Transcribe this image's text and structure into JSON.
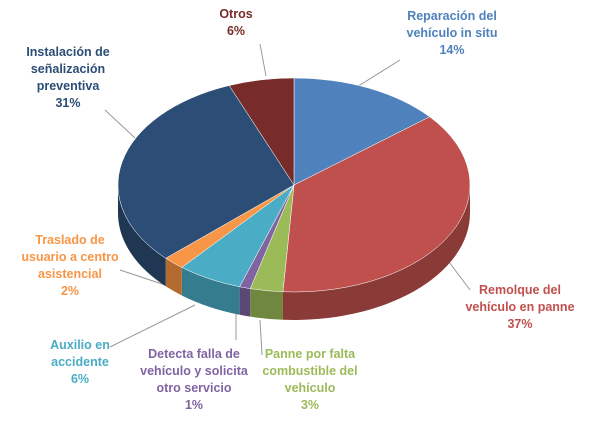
{
  "chart_data": {
    "type": "pie",
    "categories": [
      "Reparación del vehículo in situ",
      "Remolque del vehículo en panne",
      "Panne por falta combustible del vehículo",
      "Detecta falla de vehículo y solicita otro servicio",
      "Auxilio en accidente",
      "Traslado de usuario a centro asistencial",
      "Instalación de señalización preventiva",
      "Otros"
    ],
    "values": [
      14,
      37,
      3,
      1,
      6,
      2,
      31,
      6
    ],
    "value_labels": [
      "14%",
      "37%",
      "3%",
      "1%",
      "6%",
      "2%",
      "31%",
      "6%"
    ],
    "colors": [
      "#4f81bd",
      "#c0504d",
      "#9bbb59",
      "#8064a2",
      "#4bacc6",
      "#f79646",
      "#2c4d75",
      "#772c2a"
    ]
  }
}
